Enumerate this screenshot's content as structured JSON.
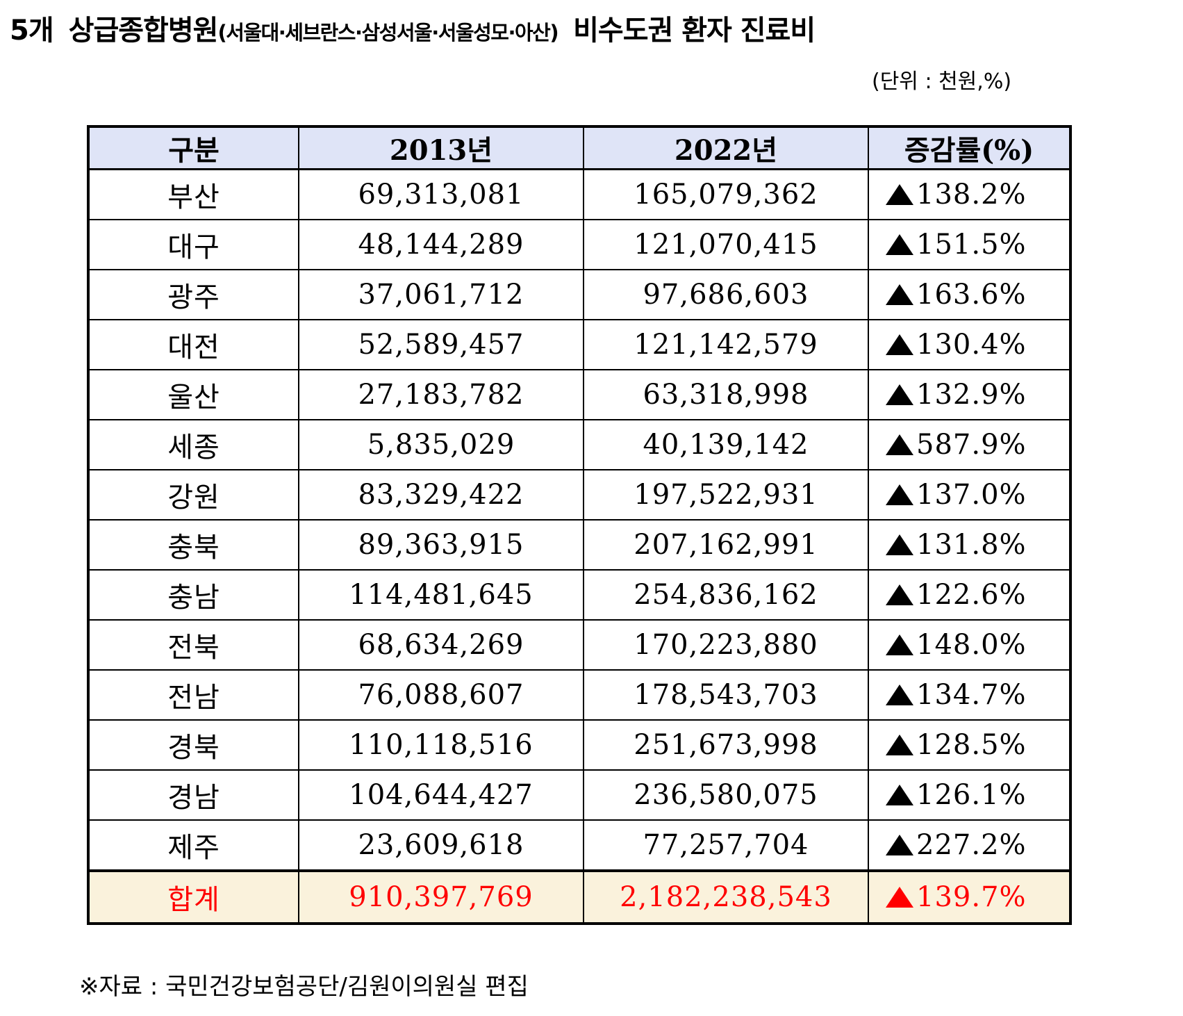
{
  "title": {
    "prefix": "5개",
    "main": "상급종합병원",
    "hospitals": "(서울대·세브란스·삼성서울·서울성모·아산)",
    "suffix": "비수도권 환자 진료비"
  },
  "unit": "(단위 : 천원,%)",
  "table": {
    "headers": [
      "구분",
      "2013년",
      "2022년",
      "증감률(%)"
    ],
    "rows": [
      {
        "region": "부산",
        "y2013": "69,313,081",
        "y2022": "165,079,362",
        "rate": "138.2%"
      },
      {
        "region": "대구",
        "y2013": "48,144,289",
        "y2022": "121,070,415",
        "rate": "151.5%"
      },
      {
        "region": "광주",
        "y2013": "37,061,712",
        "y2022": "97,686,603",
        "rate": "163.6%"
      },
      {
        "region": "대전",
        "y2013": "52,589,457",
        "y2022": "121,142,579",
        "rate": "130.4%"
      },
      {
        "region": "울산",
        "y2013": "27,183,782",
        "y2022": "63,318,998",
        "rate": "132.9%"
      },
      {
        "region": "세종",
        "y2013": "5,835,029",
        "y2022": "40,139,142",
        "rate": "587.9%"
      },
      {
        "region": "강원",
        "y2013": "83,329,422",
        "y2022": "197,522,931",
        "rate": "137.0%"
      },
      {
        "region": "충북",
        "y2013": "89,363,915",
        "y2022": "207,162,991",
        "rate": "131.8%"
      },
      {
        "region": "충남",
        "y2013": "114,481,645",
        "y2022": "254,836,162",
        "rate": "122.6%"
      },
      {
        "region": "전북",
        "y2013": "68,634,269",
        "y2022": "170,223,880",
        "rate": "148.0%"
      },
      {
        "region": "전남",
        "y2013": "76,088,607",
        "y2022": "178,543,703",
        "rate": "134.7%"
      },
      {
        "region": "경북",
        "y2013": "110,118,516",
        "y2022": "251,673,998",
        "rate": "128.5%"
      },
      {
        "region": "경남",
        "y2013": "104,644,427",
        "y2022": "236,580,075",
        "rate": "126.1%"
      },
      {
        "region": "제주",
        "y2013": "23,609,618",
        "y2022": "77,257,704",
        "rate": "227.2%"
      }
    ],
    "total": {
      "region": "합계",
      "y2013": "910,397,769",
      "y2022": "2,182,238,543",
      "rate": "139.7%"
    },
    "rate_icon": "up-triangle-icon",
    "colors": {
      "header_bg": "#dfe4f7",
      "total_bg": "#faf2dc",
      "total_text": "#ff0000"
    }
  },
  "footer": "※자료 : 국민건강보험공단/김원이의원실 편집"
}
